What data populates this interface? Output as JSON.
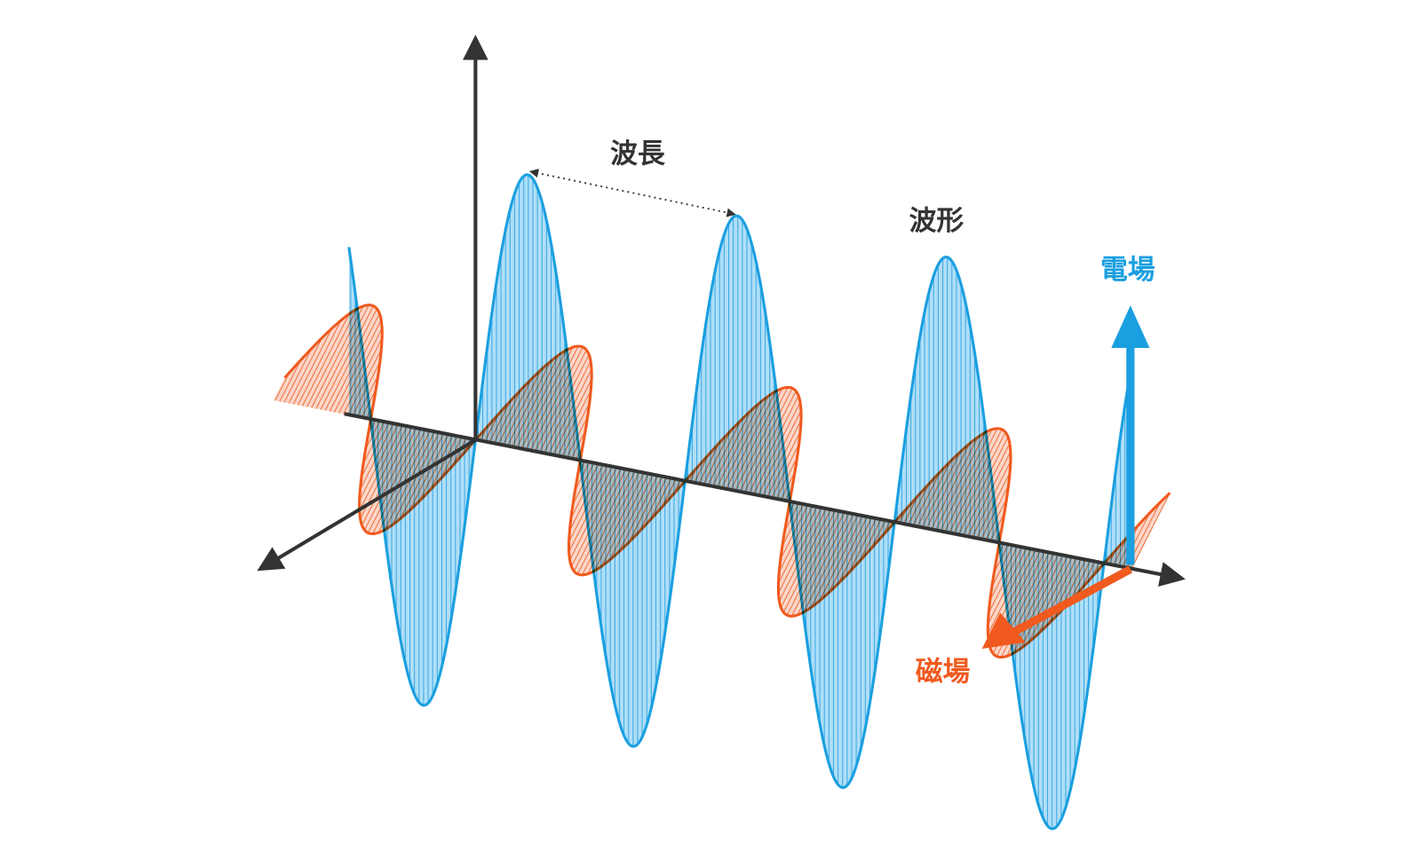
{
  "labels": {
    "wavelength": "波長",
    "waveform": "波形",
    "electric_field": "電場",
    "magnetic_field": "磁場"
  }
}
